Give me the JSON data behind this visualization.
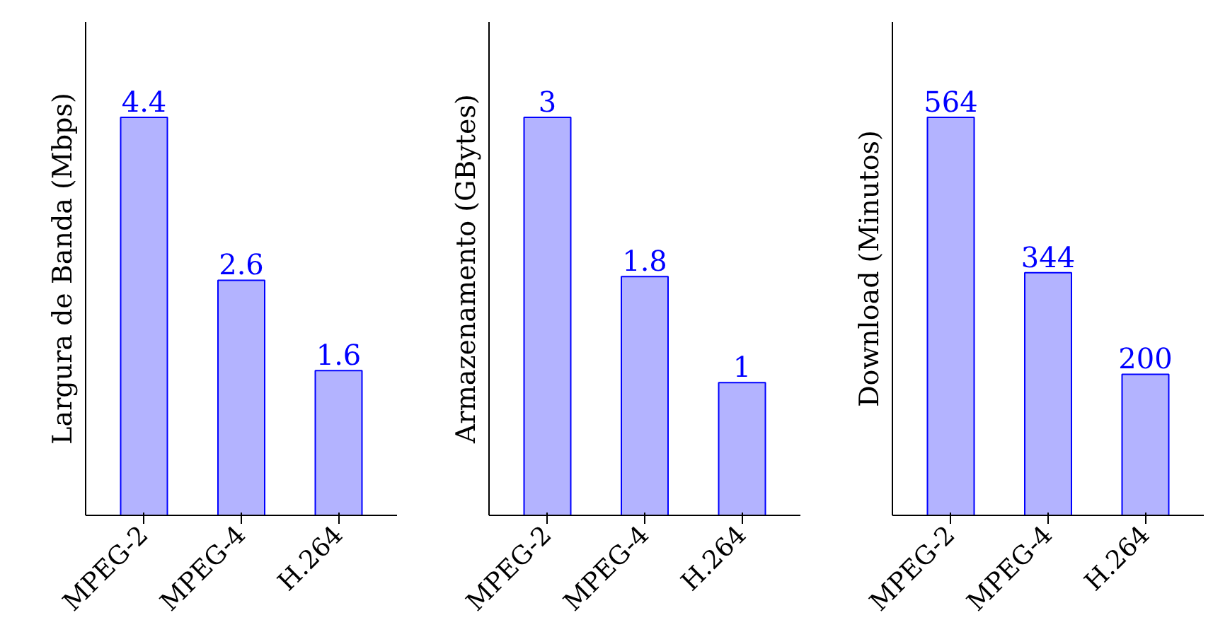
{
  "chart_data": [
    {
      "type": "bar",
      "ylabel": "Largura de Banda (Mbps)",
      "categories": [
        "MPEG-2",
        "MPEG-4",
        "H.264"
      ],
      "values": [
        4.4,
        2.6,
        1.6
      ],
      "color": "#b3b3ff",
      "data_labels": true,
      "tick_labels": "x",
      "grid": false
    },
    {
      "type": "bar",
      "ylabel": "Armazenamento (GBytes)",
      "categories": [
        "MPEG-2",
        "MPEG-4",
        "H.264"
      ],
      "values": [
        3,
        1.8,
        1
      ],
      "color": "#b3b3ff",
      "data_labels": true,
      "tick_labels": "x",
      "grid": false
    },
    {
      "type": "bar",
      "ylabel": "Download (Minutos)",
      "categories": [
        "MPEG-2",
        "MPEG-4",
        "H.264"
      ],
      "values": [
        564,
        344,
        200
      ],
      "color": "#b3b3ff",
      "data_labels": true,
      "tick_labels": "x",
      "grid": false
    }
  ]
}
